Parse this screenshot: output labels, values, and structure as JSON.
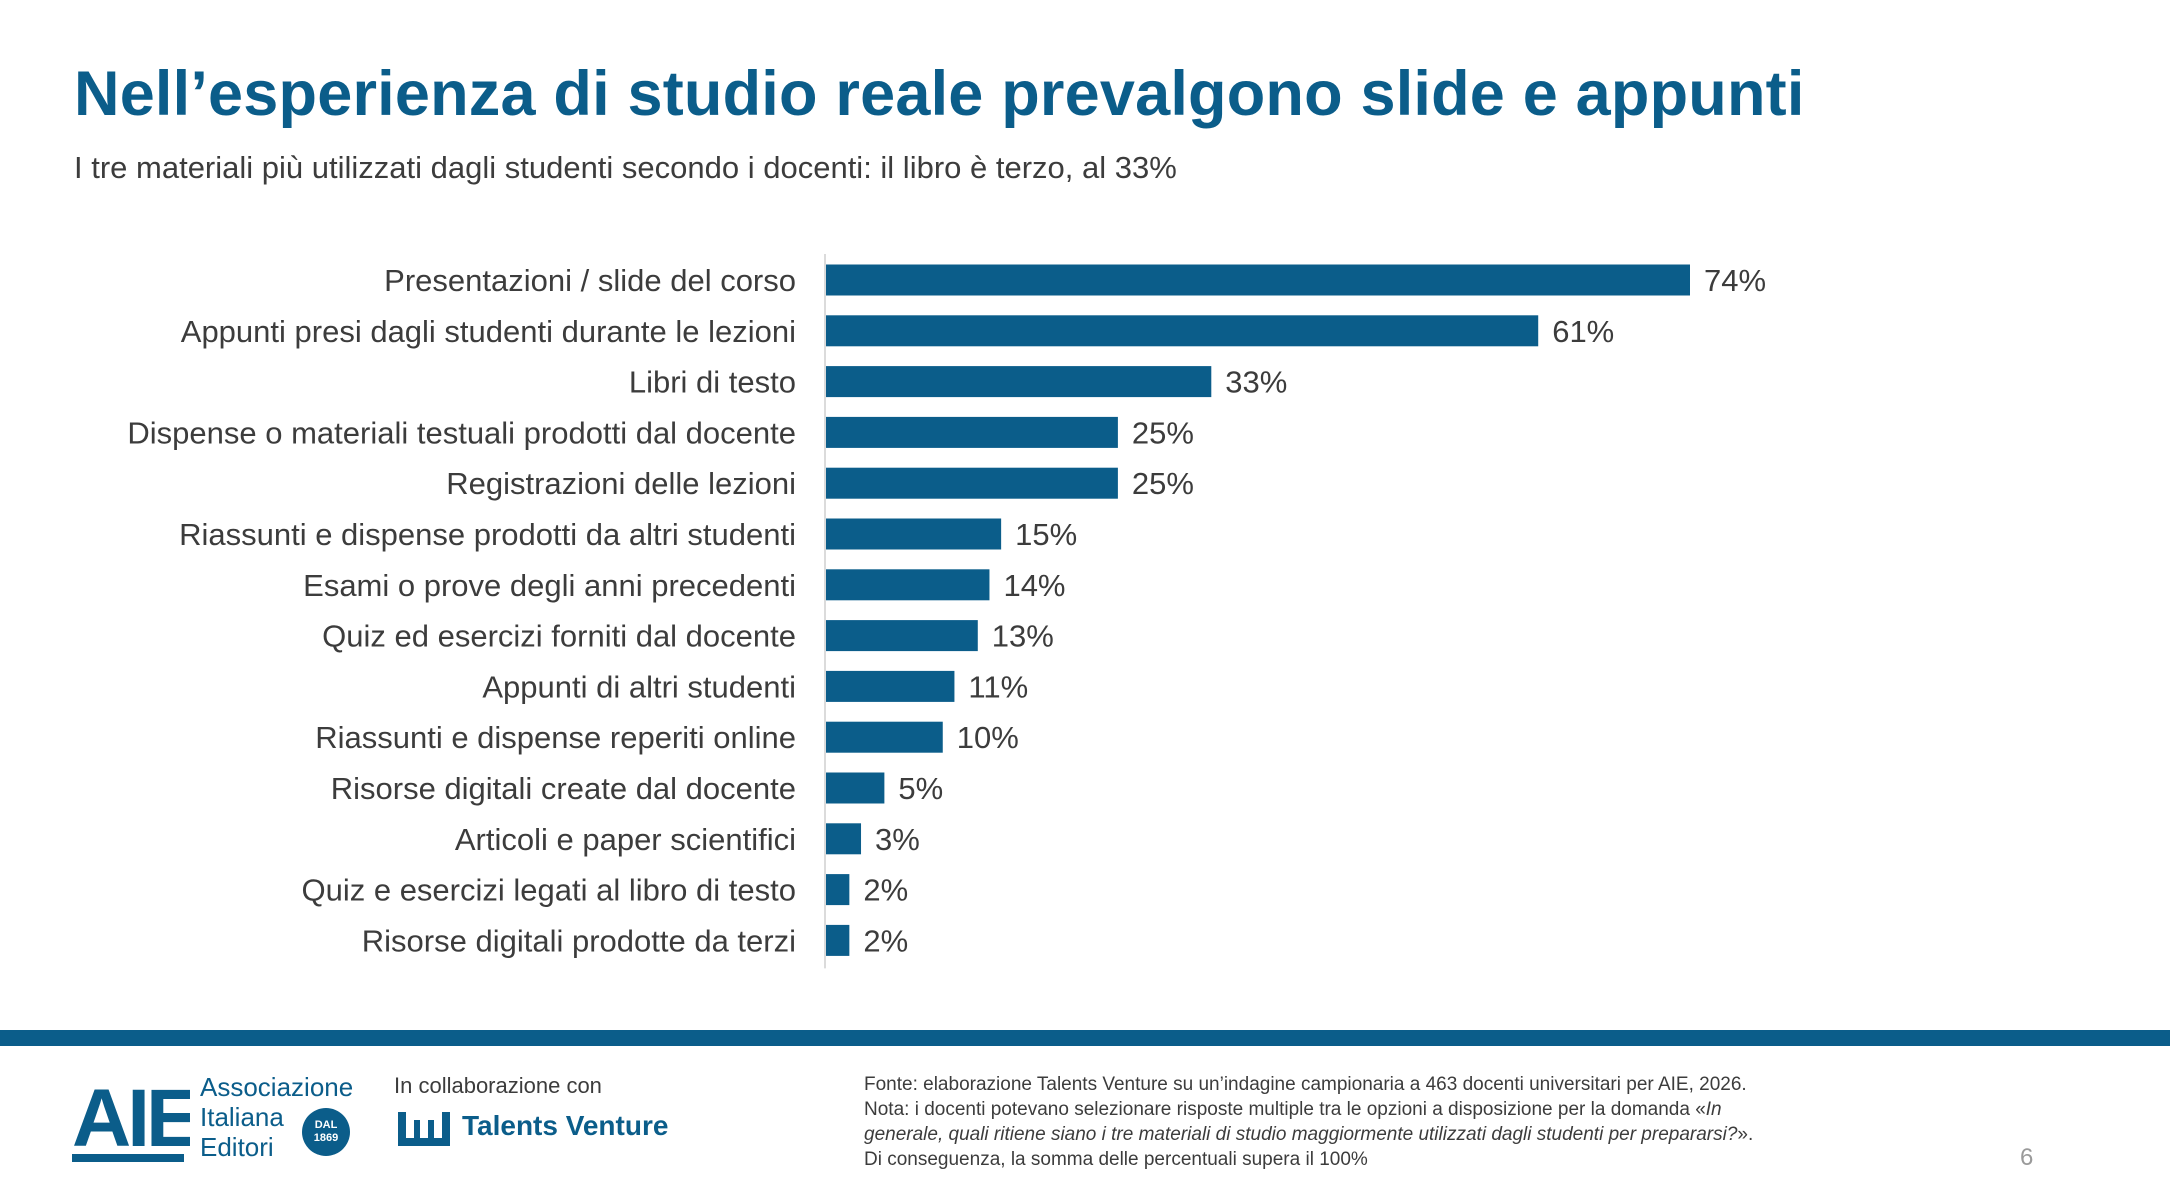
{
  "title": "Nell’esperienza di studio reale prevalgono slide e appunti",
  "subtitle": "I tre materiali più utilizzati dagli studenti secondo i docenti: il libro è terzo, al 33%",
  "colors": {
    "brand": "#0b5d8a",
    "text": "#3c3c3c",
    "axis": "#cfcfcf"
  },
  "chart_data": {
    "type": "bar",
    "orientation": "horizontal",
    "categories": [
      "Presentazioni / slide del corso",
      "Appunti presi dagli studenti durante le lezioni",
      "Libri di testo",
      "Dispense o materiali testuali prodotti dal docente",
      "Registrazioni delle lezioni",
      "Riassunti e dispense prodotti da altri studenti",
      "Esami o prove degli anni precedenti",
      "Quiz ed esercizi forniti dal docente",
      "Appunti di altri studenti",
      "Riassunti e dispense reperiti online",
      "Risorse digitali create dal docente",
      "Articoli e paper scientifici",
      "Quiz e esercizi legati al libro di testo",
      "Risorse digitali prodotte da terzi"
    ],
    "values": [
      74,
      61,
      33,
      25,
      25,
      15,
      14,
      13,
      11,
      10,
      5,
      3,
      2,
      2
    ],
    "value_labels": [
      "74%",
      "61%",
      "33%",
      "25%",
      "25%",
      "15%",
      "14%",
      "13%",
      "11%",
      "10%",
      "5%",
      "3%",
      "2%",
      "2%"
    ],
    "xlim": [
      0,
      74
    ],
    "grid": false,
    "legend": "none",
    "bar_color": "#0b5d8a"
  },
  "footer": {
    "aie_logo_text": "AIE",
    "aie_name_lines": [
      "Associazione",
      "Italiana",
      "Editori"
    ],
    "aie_badge": [
      "DAL",
      "1869"
    ],
    "collaboration_label": "In collaborazione con",
    "partner_name": "Talents Venture",
    "partner_icon": "talents-venture-logo-icon",
    "source_line": "Fonte: elaborazione Talents Venture su un’indagine campionaria a 463 docenti universitari per AIE, 2026.",
    "note_line_1_plain": "Nota: i docenti potevano selezionare risposte multiple tra le opzioni a disposizione per la domanda «",
    "note_line_1_italic": "In",
    "note_line_2_italic": "generale, quali ritiene siano i tre materiali di studio maggiormente utilizzati dagli studenti per prepararsi?",
    "note_line_2_plain": "».",
    "note_line_3": "Di conseguenza, la somma delle percentuali supera il 100%",
    "page_number": "6"
  }
}
